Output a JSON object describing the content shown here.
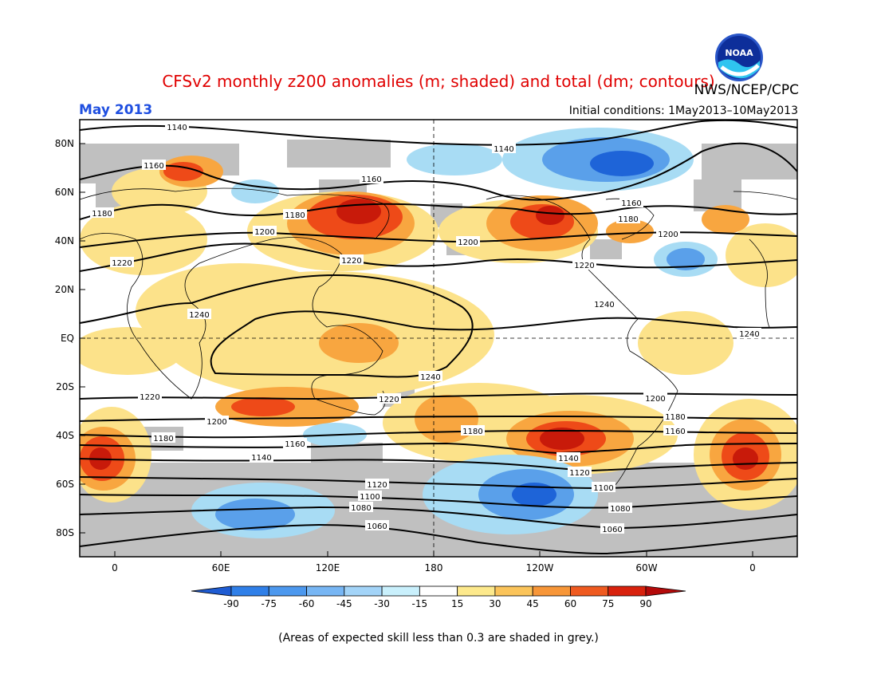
{
  "header": {
    "title": "CFSv2 monthly z200 anomalies (m; shaded) and total (dm; contours)",
    "agency": "NWS/NCEP/CPC",
    "month": "May 2013",
    "initial_conditions": "Initial conditions: 1May2013–10May2013"
  },
  "logo": {
    "text": "NOAA",
    "icon": "noaa-logo"
  },
  "map": {
    "lat_labels": [
      "80N",
      "60N",
      "40N",
      "20N",
      "EQ",
      "20S",
      "40S",
      "60S",
      "80S"
    ],
    "lon_labels": [
      "0",
      "60E",
      "120E",
      "180",
      "120W",
      "60W",
      "0"
    ],
    "contour_labels": [
      "1140",
      "1140",
      "1160",
      "1160",
      "1180",
      "1160",
      "1180",
      "1180",
      "1200",
      "1200",
      "1200",
      "1220",
      "1220",
      "1220",
      "1240",
      "1240",
      "1240",
      "1240",
      "1220",
      "1220",
      "1200",
      "1200",
      "1180",
      "1180",
      "1180",
      "1160",
      "1160",
      "1140",
      "1140",
      "1120",
      "1120",
      "1100",
      "1100",
      "1080",
      "1080",
      "1060",
      "1060"
    ],
    "colors": {
      "land_grey": "#c0c0c0",
      "neg_strong": "#1e64d8",
      "neg_mid": "#5aa0ea",
      "neg_light": "#a8dcf4",
      "pos_light": "#fce28a",
      "pos_mid": "#f8a640",
      "pos_strong": "#ee4a18",
      "pos_max": "#c81a0a"
    }
  },
  "colorbar": {
    "ticks": [
      "-90",
      "-75",
      "-60",
      "-45",
      "-30",
      "-15",
      "15",
      "30",
      "45",
      "60",
      "75",
      "90"
    ],
    "colors": [
      "#1f5cd3",
      "#2f7fe8",
      "#4c98ee",
      "#77b6f4",
      "#a3d4f8",
      "#c9f0fc",
      "#ffffff",
      "#fde98c",
      "#fbc45a",
      "#f79638",
      "#ef5a20",
      "#d8220d",
      "#b40a0a"
    ]
  },
  "footer": {
    "note": "(Areas of expected skill less than 0.3 are shaded in grey.)"
  }
}
